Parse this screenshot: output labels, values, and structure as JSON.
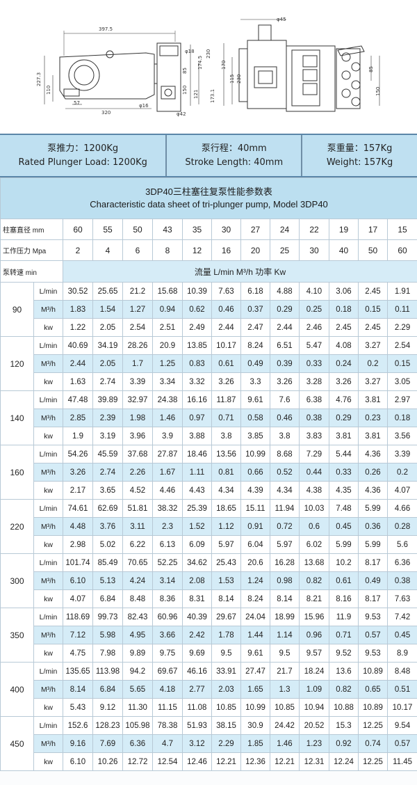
{
  "drawing": {
    "dims": {
      "d397": "397.5",
      "d45": "φ45",
      "d18": "φ18",
      "d174": "174.5",
      "d230a": "230",
      "d230b": "230",
      "d115": "115",
      "d227": "227.3",
      "d110": "110",
      "d85a": "85",
      "d121": "121",
      "d150a": "150",
      "d170": "170",
      "d173": "173.1",
      "d16": "φ16",
      "d57": "57",
      "d320": "320",
      "d42": "φ42",
      "d85b": "85",
      "d150b": "150"
    }
  },
  "specs": {
    "load_cn": "泵推力：1200Kg",
    "load_en": "Rated Plunger Load: 1200Kg",
    "stroke_cn": "泵行程：40mm",
    "stroke_en": "Stroke Length: 40mm",
    "weight_cn": "泵重量：157Kg",
    "weight_en": "Weight: 157Kg"
  },
  "table": {
    "title_cn": "3DP40三柱塞往复泵性能参数表",
    "title_en": "Characteristic data sheet of tri-plunger pump, Model 3DP40",
    "diameter_label": "柱塞直径 mm",
    "pressure_label": "工作压力 Mpa",
    "speed_label": "泵转速 min",
    "flow_power_label": "流量 L/min  M³/h  功率 Kw",
    "diameters": [
      "60",
      "55",
      "50",
      "43",
      "35",
      "30",
      "27",
      "24",
      "22",
      "19",
      "17",
      "15"
    ],
    "pressures": [
      "2",
      "4",
      "6",
      "8",
      "12",
      "16",
      "20",
      "25",
      "30",
      "40",
      "50",
      "60"
    ],
    "units": [
      "L/min",
      "M³/h",
      "kw"
    ],
    "rpm_groups": [
      {
        "rpm": "90",
        "rows": [
          [
            "30.52",
            "25.65",
            "21.2",
            "15.68",
            "10.39",
            "7.63",
            "6.18",
            "4.88",
            "4.10",
            "3.06",
            "2.45",
            "1.91"
          ],
          [
            "1.83",
            "1.54",
            "1.27",
            "0.94",
            "0.62",
            "0.46",
            "0.37",
            "0.29",
            "0.25",
            "0.18",
            "0.15",
            "0.11"
          ],
          [
            "1.22",
            "2.05",
            "2.54",
            "2.51",
            "2.49",
            "2.44",
            "2.47",
            "2.44",
            "2.46",
            "2.45",
            "2.45",
            "2.29"
          ]
        ]
      },
      {
        "rpm": "120",
        "rows": [
          [
            "40.69",
            "34.19",
            "28.26",
            "20.9",
            "13.85",
            "10.17",
            "8.24",
            "6.51",
            "5.47",
            "4.08",
            "3.27",
            "2.54"
          ],
          [
            "2.44",
            "2.05",
            "1.7",
            "1.25",
            "0.83",
            "0.61",
            "0.49",
            "0.39",
            "0.33",
            "0.24",
            "0.2",
            "0.15"
          ],
          [
            "1.63",
            "2.74",
            "3.39",
            "3.34",
            "3.32",
            "3.26",
            "3.3",
            "3.26",
            "3.28",
            "3.26",
            "3.27",
            "3.05"
          ]
        ]
      },
      {
        "rpm": "140",
        "rows": [
          [
            "47.48",
            "39.89",
            "32.97",
            "24.38",
            "16.16",
            "11.87",
            "9.61",
            "7.6",
            "6.38",
            "4.76",
            "3.81",
            "2.97"
          ],
          [
            "2.85",
            "2.39",
            "1.98",
            "1.46",
            "0.97",
            "0.71",
            "0.58",
            "0.46",
            "0.38",
            "0.29",
            "0.23",
            "0.18"
          ],
          [
            "1.9",
            "3.19",
            "3.96",
            "3.9",
            "3.88",
            "3.8",
            "3.85",
            "3.8",
            "3.83",
            "3.81",
            "3.81",
            "3.56"
          ]
        ]
      },
      {
        "rpm": "160",
        "rows": [
          [
            "54.26",
            "45.59",
            "37.68",
            "27.87",
            "18.46",
            "13.56",
            "10.99",
            "8.68",
            "7.29",
            "5.44",
            "4.36",
            "3.39"
          ],
          [
            "3.26",
            "2.74",
            "2.26",
            "1.67",
            "1.11",
            "0.81",
            "0.66",
            "0.52",
            "0.44",
            "0.33",
            "0.26",
            "0.2"
          ],
          [
            "2.17",
            "3.65",
            "4.52",
            "4.46",
            "4.43",
            "4.34",
            "4.39",
            "4.34",
            "4.38",
            "4.35",
            "4.36",
            "4.07"
          ]
        ]
      },
      {
        "rpm": "220",
        "rows": [
          [
            "74.61",
            "62.69",
            "51.81",
            "38.32",
            "25.39",
            "18.65",
            "15.11",
            "11.94",
            "10.03",
            "7.48",
            "5.99",
            "4.66"
          ],
          [
            "4.48",
            "3.76",
            "3.11",
            "2.3",
            "1.52",
            "1.12",
            "0.91",
            "0.72",
            "0.6",
            "0.45",
            "0.36",
            "0.28"
          ],
          [
            "2.98",
            "5.02",
            "6.22",
            "6.13",
            "6.09",
            "5.97",
            "6.04",
            "5.97",
            "6.02",
            "5.99",
            "5.99",
            "5.6"
          ]
        ]
      },
      {
        "rpm": "300",
        "rows": [
          [
            "101.74",
            "85.49",
            "70.65",
            "52.25",
            "34.62",
            "25.43",
            "20.6",
            "16.28",
            "13.68",
            "10.2",
            "8.17",
            "6.36"
          ],
          [
            "6.10",
            "5.13",
            "4.24",
            "3.14",
            "2.08",
            "1.53",
            "1.24",
            "0.98",
            "0.82",
            "0.61",
            "0.49",
            "0.38"
          ],
          [
            "4.07",
            "6.84",
            "8.48",
            "8.36",
            "8.31",
            "8.14",
            "8.24",
            "8.14",
            "8.21",
            "8.16",
            "8.17",
            "7.63"
          ]
        ]
      },
      {
        "rpm": "350",
        "rows": [
          [
            "118.69",
            "99.73",
            "82.43",
            "60.96",
            "40.39",
            "29.67",
            "24.04",
            "18.99",
            "15.96",
            "11.9",
            "9.53",
            "7.42"
          ],
          [
            "7.12",
            "5.98",
            "4.95",
            "3.66",
            "2.42",
            "1.78",
            "1.44",
            "1.14",
            "0.96",
            "0.71",
            "0.57",
            "0.45"
          ],
          [
            "4.75",
            "7.98",
            "9.89",
            "9.75",
            "9.69",
            "9.5",
            "9.61",
            "9.5",
            "9.57",
            "9.52",
            "9.53",
            "8.9"
          ]
        ]
      },
      {
        "rpm": "400",
        "rows": [
          [
            "135.65",
            "113.98",
            "94.2",
            "69.67",
            "46.16",
            "33.91",
            "27.47",
            "21.7",
            "18.24",
            "13.6",
            "10.89",
            "8.48"
          ],
          [
            "8.14",
            "6.84",
            "5.65",
            "4.18",
            "2.77",
            "2.03",
            "1.65",
            "1.3",
            "1.09",
            "0.82",
            "0.65",
            "0.51"
          ],
          [
            "5.43",
            "9.12",
            "11.30",
            "11.15",
            "11.08",
            "10.85",
            "10.99",
            "10.85",
            "10.94",
            "10.88",
            "10.89",
            "10.17"
          ]
        ]
      },
      {
        "rpm": "450",
        "rows": [
          [
            "152.6",
            "128.23",
            "105.98",
            "78.38",
            "51.93",
            "38.15",
            "30.9",
            "24.42",
            "20.52",
            "15.3",
            "12.25",
            "9.54"
          ],
          [
            "9.16",
            "7.69",
            "6.36",
            "4.7",
            "3.12",
            "2.29",
            "1.85",
            "1.46",
            "1.23",
            "0.92",
            "0.74",
            "0.57"
          ],
          [
            "6.10",
            "10.26",
            "12.72",
            "12.54",
            "12.46",
            "12.21",
            "12.36",
            "12.21",
            "12.31",
            "12.24",
            "12.25",
            "11.45"
          ]
        ]
      }
    ]
  }
}
